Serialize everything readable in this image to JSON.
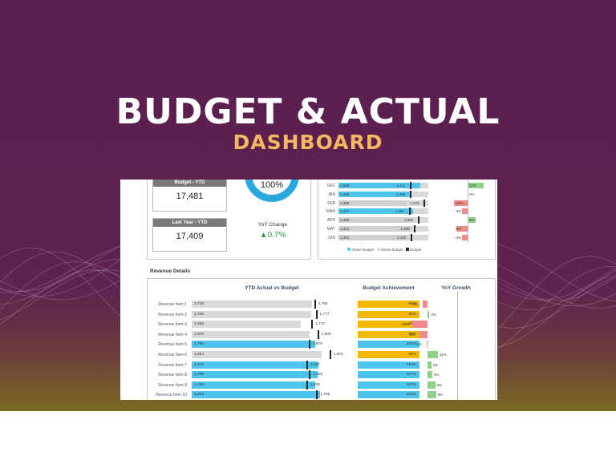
{
  "banner": {
    "title": "BUDGET & ACTUAL",
    "subtitle": "DASHBOARD"
  },
  "colors": {
    "background": "#5b1f4f",
    "title": "#ffffff",
    "subtitle": "#f4b860",
    "above_budget": "#4cc4ec",
    "below_budget": "#d9d9d9",
    "achievement": "#f5b800",
    "growth_positive": "#8fd18b",
    "growth_negative": "#f08a8a",
    "yoy_change": "#2e9e48"
  },
  "kpi": {
    "budget_label": "Budget - YTD",
    "budget_value": "17,481",
    "last_year_label": "Last Year - YTD",
    "last_year_value": "17,409",
    "achievement_value": "100%",
    "yoy_label": "YoY Change",
    "yoy_value": "0.7%",
    "yoy_icon": "triangle-up-icon"
  },
  "monthly": [
    {
      "month": "DEC",
      "actual": "1,588",
      "budget": "1,411",
      "growth": "12%",
      "actual_n": 1588,
      "budget_n": 1411,
      "growth_n": 12,
      "above": true
    },
    {
      "month": "JAN",
      "actual": "1,406",
      "budget": "1,406",
      "growth": "0%",
      "actual_n": 1406,
      "budget_n": 1406,
      "growth_n": 0,
      "above": true
    },
    {
      "month": "FEB",
      "actual": "1,308",
      "budget": "1,678",
      "growth": "-10%",
      "actual_n": 1308,
      "budget_n": 1678,
      "growth_n": -10,
      "above": false
    },
    {
      "month": "MAR",
      "actual": "1,457",
      "budget": "1,384",
      "growth": "-4%",
      "actual_n": 1457,
      "budget_n": 1384,
      "growth_n": -4,
      "above": true
    },
    {
      "month": "APR",
      "actual": "1,405",
      "budget": "1,564",
      "growth": "6%",
      "actual_n": 1405,
      "budget_n": 1564,
      "growth_n": 6,
      "above": false
    },
    {
      "month": "MAY",
      "actual": "1,441",
      "budget": "1,490",
      "growth": "-8%",
      "actual_n": 1441,
      "budget_n": 1490,
      "growth_n": -8,
      "above": false
    },
    {
      "month": "JUN",
      "actual": "1,362",
      "budget": "1,418",
      "growth": "-4%",
      "actual_n": 1362,
      "budget_n": 1418,
      "growth_n": -4,
      "above": false
    }
  ],
  "legend": {
    "above": "Above Budget",
    "below": "Below Budget",
    "budget": "Budget"
  },
  "revenue": {
    "section_title": "Revenue Details",
    "col_ytd": "YTD Actual vs Budget",
    "col_achievement": "Budget Achievement",
    "col_growth": "YoY Growth",
    "items": [
      {
        "label": "Revenue Item-1",
        "actual": "1,718",
        "budget": "1,755",
        "achievement": "98%",
        "growth": "-5%",
        "actual_n": 1718,
        "budget_n": 1755,
        "ach_n": 98,
        "growth_n": -5,
        "above": false
      },
      {
        "label": "Revenue Item-2",
        "actual": "1,708",
        "budget": "1,777",
        "achievement": "96%",
        "growth": "2%",
        "actual_n": 1708,
        "budget_n": 1777,
        "ach_n": 96,
        "growth_n": 2,
        "above": false
      },
      {
        "label": "Revenue Item-3",
        "actual": "1,552",
        "budget": "1,717",
        "achievement": "90%",
        "growth": "-16%",
        "actual_n": 1552,
        "budget_n": 1717,
        "ach_n": 90,
        "growth_n": -16,
        "above": false
      },
      {
        "label": "Revenue Item-4",
        "actual": "1,675",
        "budget": "1,800",
        "achievement": "93%",
        "growth": "-8%",
        "actual_n": 1675,
        "budget_n": 1800,
        "ach_n": 93,
        "growth_n": -8,
        "above": false
      },
      {
        "label": "Revenue Item-5",
        "actual": "1,764",
        "budget": "1,679",
        "achievement": "105%",
        "growth": "-1%",
        "actual_n": 1764,
        "budget_n": 1679,
        "ach_n": 105,
        "growth_n": -1,
        "above": true
      },
      {
        "label": "Revenue Item-6",
        "actual": "1,854",
        "budget": "1,973",
        "achievement": "94%",
        "growth": "11%",
        "actual_n": 1854,
        "budget_n": 1973,
        "ach_n": 94,
        "growth_n": 11,
        "above": false
      },
      {
        "label": "Revenue Item-7",
        "actual": "1,810",
        "budget": "1,647",
        "achievement": "110%",
        "growth": "4%",
        "actual_n": 1810,
        "budget_n": 1647,
        "ach_n": 110,
        "growth_n": 4,
        "above": true
      },
      {
        "label": "Revenue Item-8",
        "actual": "1,795",
        "budget": "1,683",
        "achievement": "107%",
        "growth": "5%",
        "actual_n": 1795,
        "budget_n": 1683,
        "ach_n": 107,
        "growth_n": 5,
        "above": true
      },
      {
        "label": "Revenue Item-9",
        "actual": "1,759",
        "budget": "1,645",
        "achievement": "107%",
        "growth": "8%",
        "actual_n": 1759,
        "budget_n": 1645,
        "ach_n": 107,
        "growth_n": 8,
        "above": true
      },
      {
        "label": "Revenue Item-10",
        "actual": "1,824",
        "budget": "1,785",
        "achievement": "102%",
        "growth": "9%",
        "actual_n": 1824,
        "budget_n": 1785,
        "ach_n": 102,
        "growth_n": 9,
        "above": true
      }
    ]
  }
}
